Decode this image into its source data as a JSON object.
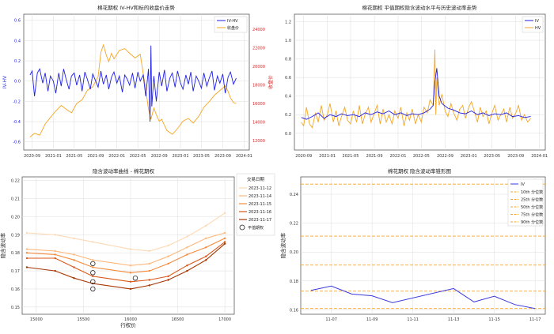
{
  "chart_data": [
    {
      "type": "line",
      "title": "棉花期权 IV-HV和标的收盘价走势",
      "xlabel": "",
      "ylabel_left": "IV-HV",
      "ylabel_right": "收盘价",
      "x_ticks": [
        "2020-09",
        "2021-01",
        "2021-05",
        "2021-09",
        "2022-01",
        "2022-05",
        "2022-09",
        "2023-01",
        "2023-05",
        "2023-09",
        "2024-01"
      ],
      "y_left_ticks": [
        "-0.6",
        "-0.4",
        "-0.2",
        "0.0",
        "0.2",
        "0.4",
        "0.6"
      ],
      "y_right_ticks": [
        "12000",
        "14000",
        "16000",
        "18000",
        "20000",
        "22000",
        "24000"
      ],
      "ylim_left": [
        -0.68,
        0.66
      ],
      "ylim_right": [
        11000,
        25600
      ],
      "xlim": [
        "2020-07-15",
        "2024-01-31"
      ],
      "grid": true,
      "legend_position": "top-right",
      "series": [
        {
          "name": "IV-HV",
          "color": "#1f1fe6",
          "axis": "left",
          "x": [
            "2020-08-20",
            "2020-09-01",
            "2020-09-15",
            "2020-10-01",
            "2020-10-15",
            "2020-11-01",
            "2020-11-15",
            "2020-12-01",
            "2020-12-15",
            "2021-01-01",
            "2021-01-15",
            "2021-02-01",
            "2021-02-15",
            "2021-03-01",
            "2021-03-15",
            "2021-04-01",
            "2021-04-15",
            "2021-05-01",
            "2021-05-15",
            "2021-06-01",
            "2021-06-15",
            "2021-07-01",
            "2021-07-15",
            "2021-08-01",
            "2021-08-15",
            "2021-09-01",
            "2021-09-15",
            "2021-10-01",
            "2021-10-15",
            "2021-11-01",
            "2021-11-15",
            "2021-12-01",
            "2021-12-15",
            "2022-01-01",
            "2022-01-15",
            "2022-02-01",
            "2022-02-15",
            "2022-03-01",
            "2022-03-15",
            "2022-04-01",
            "2022-04-15",
            "2022-05-01",
            "2022-05-15",
            "2022-06-01",
            "2022-06-15",
            "2022-07-01",
            "2022-07-10",
            "2022-07-15",
            "2022-07-20",
            "2022-08-01",
            "2022-08-15",
            "2022-09-01",
            "2022-09-15",
            "2022-10-01",
            "2022-10-15",
            "2022-11-01",
            "2022-11-15",
            "2022-12-01",
            "2022-12-15",
            "2023-01-01",
            "2023-01-15",
            "2023-02-01",
            "2023-02-15",
            "2023-03-01",
            "2023-03-15",
            "2023-04-01",
            "2023-04-15",
            "2023-05-01",
            "2023-05-15",
            "2023-06-01",
            "2023-06-15",
            "2023-07-01",
            "2023-07-15",
            "2023-08-01",
            "2023-08-15",
            "2023-09-01",
            "2023-09-15",
            "2023-10-01",
            "2023-10-15",
            "2023-11-01",
            "2023-11-17"
          ],
          "values": [
            0.06,
            0.1,
            -0.15,
            0.08,
            0.12,
            -0.02,
            0.08,
            -0.1,
            0.05,
            0.0,
            -0.12,
            0.08,
            -0.05,
            0.12,
            0.02,
            -0.08,
            0.05,
            0.08,
            -0.04,
            0.06,
            -0.1,
            0.09,
            0.02,
            -0.08,
            0.07,
            0.0,
            -0.06,
            0.1,
            -0.03,
            0.06,
            -0.08,
            0.04,
            0.09,
            -0.02,
            0.05,
            -0.11,
            0.06,
            0.02,
            -0.04,
            0.08,
            -0.07,
            0.09,
            0.0,
            0.06,
            -0.15,
            0.12,
            -0.4,
            0.35,
            -0.25,
            0.05,
            -0.2,
            0.09,
            -0.05,
            0.11,
            -0.1,
            0.03,
            0.08,
            -0.06,
            0.1,
            -0.02,
            -0.08,
            0.06,
            -0.03,
            0.09,
            -0.1,
            0.05,
            0.0,
            -0.07,
            0.08,
            -0.05,
            0.03,
            0.1,
            -0.09,
            0.05,
            -0.02,
            0.07,
            -0.12,
            0.04,
            0.09,
            -0.03,
            0.03
          ]
        },
        {
          "name": "收盘价",
          "color": "#f5a623",
          "axis": "right",
          "x": [
            "2020-08-20",
            "2020-09-15",
            "2020-10-15",
            "2020-11-15",
            "2020-12-15",
            "2021-01-15",
            "2021-02-15",
            "2021-03-15",
            "2021-04-15",
            "2021-05-15",
            "2021-06-15",
            "2021-07-15",
            "2021-08-15",
            "2021-09-15",
            "2021-10-01",
            "2021-10-15",
            "2021-11-01",
            "2021-11-15",
            "2021-12-01",
            "2021-12-15",
            "2022-01-15",
            "2022-02-15",
            "2022-03-15",
            "2022-04-15",
            "2022-05-15",
            "2022-06-01",
            "2022-06-15",
            "2022-07-01",
            "2022-07-15",
            "2022-08-01",
            "2022-08-15",
            "2022-09-01",
            "2022-09-15",
            "2022-10-15",
            "2022-11-15",
            "2022-12-15",
            "2023-01-15",
            "2023-02-15",
            "2023-03-15",
            "2023-04-15",
            "2023-05-15",
            "2023-06-15",
            "2023-07-15",
            "2023-08-15",
            "2023-09-15",
            "2023-10-01",
            "2023-10-15",
            "2023-11-01",
            "2023-11-17"
          ],
          "values": [
            12400,
            12800,
            12600,
            13800,
            14500,
            15200,
            15800,
            15400,
            15000,
            16000,
            16400,
            17400,
            17800,
            18900,
            21500,
            22300,
            21200,
            20500,
            21400,
            20800,
            21700,
            21900,
            21400,
            20900,
            21300,
            19200,
            17600,
            15400,
            14300,
            15500,
            14800,
            14100,
            14300,
            13100,
            12700,
            13300,
            14100,
            14400,
            13900,
            14600,
            15600,
            16200,
            16900,
            17400,
            17900,
            17300,
            16600,
            16100,
            16000
          ]
        }
      ]
    },
    {
      "type": "line",
      "title": "棉花期权 平值期权隐含波动水平与历史波动率走势",
      "xlabel": "",
      "ylabel": "",
      "x_ticks": [
        "2020-09",
        "2021-01",
        "2021-05",
        "2021-09",
        "2022-01",
        "2022-05",
        "2022-09",
        "2023-01",
        "2023-05",
        "2023-09",
        "2024-01"
      ],
      "y_ticks": [
        "0.0",
        "0.2",
        "0.4",
        "0.6",
        "0.8",
        "1.0",
        "1.2"
      ],
      "ylim": [
        -0.18,
        1.28
      ],
      "xlim": [
        "2020-07-15",
        "2024-01-31"
      ],
      "grid": true,
      "legend_position": "top-right",
      "series": [
        {
          "name": "IV",
          "color": "#1f1fe6",
          "x": [
            "2020-08-20",
            "2020-09-15",
            "2020-10-15",
            "2020-11-15",
            "2020-12-15",
            "2021-01-15",
            "2021-02-15",
            "2021-03-15",
            "2021-04-15",
            "2021-05-15",
            "2021-06-15",
            "2021-07-15",
            "2021-08-15",
            "2021-09-15",
            "2021-10-15",
            "2021-11-15",
            "2021-12-15",
            "2022-01-15",
            "2022-02-15",
            "2022-03-15",
            "2022-04-15",
            "2022-05-15",
            "2022-06-15",
            "2022-07-01",
            "2022-07-10",
            "2022-07-20",
            "2022-08-01",
            "2022-08-15",
            "2022-09-15",
            "2022-10-15",
            "2022-11-15",
            "2022-12-15",
            "2023-01-15",
            "2023-02-15",
            "2023-03-15",
            "2023-04-15",
            "2023-05-15",
            "2023-06-15",
            "2023-07-15",
            "2023-08-15",
            "2023-09-15",
            "2023-10-15",
            "2023-11-17"
          ],
          "values": [
            0.17,
            0.15,
            0.18,
            0.22,
            0.16,
            0.2,
            0.18,
            0.21,
            0.19,
            0.2,
            0.18,
            0.22,
            0.2,
            0.23,
            0.21,
            0.24,
            0.2,
            0.22,
            0.19,
            0.21,
            0.2,
            0.22,
            0.26,
            0.3,
            0.55,
            0.7,
            0.4,
            0.32,
            0.27,
            0.25,
            0.22,
            0.21,
            0.24,
            0.2,
            0.22,
            0.19,
            0.21,
            0.2,
            0.22,
            0.18,
            0.19,
            0.17,
            0.18
          ]
        },
        {
          "name": "HV",
          "color": "#f5a623",
          "x": [
            "2020-08-20",
            "2020-09-01",
            "2020-09-15",
            "2020-10-01",
            "2020-10-15",
            "2020-11-01",
            "2020-11-15",
            "2020-12-01",
            "2020-12-15",
            "2021-01-01",
            "2021-01-15",
            "2021-02-01",
            "2021-02-15",
            "2021-03-01",
            "2021-03-15",
            "2021-04-01",
            "2021-04-15",
            "2021-05-01",
            "2021-05-15",
            "2021-06-01",
            "2021-06-15",
            "2021-07-01",
            "2021-07-15",
            "2021-08-01",
            "2021-08-15",
            "2021-09-01",
            "2021-09-15",
            "2021-10-01",
            "2021-10-15",
            "2021-11-01",
            "2021-11-15",
            "2021-12-01",
            "2021-12-15",
            "2022-01-01",
            "2022-01-15",
            "2022-02-01",
            "2022-02-15",
            "2022-03-01",
            "2022-03-15",
            "2022-04-01",
            "2022-04-15",
            "2022-05-01",
            "2022-05-15",
            "2022-06-01",
            "2022-06-15",
            "2022-07-01",
            "2022-07-10",
            "2022-07-15",
            "2022-07-20",
            "2022-08-01",
            "2022-08-15",
            "2022-09-01",
            "2022-09-15",
            "2022-10-01",
            "2022-10-15",
            "2022-11-01",
            "2022-11-15",
            "2022-12-01",
            "2022-12-15",
            "2023-01-01",
            "2023-01-15",
            "2023-02-01",
            "2023-02-15",
            "2023-03-01",
            "2023-03-15",
            "2023-04-01",
            "2023-04-15",
            "2023-05-01",
            "2023-05-15",
            "2023-06-01",
            "2023-06-15",
            "2023-07-01",
            "2023-07-15",
            "2023-08-01",
            "2023-08-15",
            "2023-09-01",
            "2023-09-15",
            "2023-10-01",
            "2023-10-15",
            "2023-11-01",
            "2023-11-17"
          ],
          "values": [
            0.12,
            0.08,
            0.28,
            0.1,
            0.06,
            0.22,
            0.12,
            0.3,
            0.14,
            0.2,
            0.32,
            0.12,
            0.24,
            0.08,
            0.18,
            0.28,
            0.14,
            0.1,
            0.24,
            0.12,
            0.3,
            0.1,
            0.2,
            0.28,
            0.12,
            0.22,
            0.3,
            0.1,
            0.26,
            0.12,
            0.2,
            0.1,
            0.24,
            0.16,
            0.28,
            0.08,
            0.22,
            0.14,
            0.26,
            0.1,
            0.2,
            0.12,
            0.28,
            0.22,
            0.36,
            0.3,
            0.9,
            0.2,
            0.6,
            0.3,
            0.42,
            0.24,
            0.18,
            0.32,
            0.22,
            0.14,
            0.26,
            0.3,
            0.16,
            0.28,
            0.34,
            0.22,
            0.12,
            0.28,
            0.18,
            0.24,
            0.1,
            0.22,
            0.3,
            0.14,
            0.2,
            0.26,
            0.12,
            0.28,
            0.16,
            0.22,
            0.3,
            0.14,
            0.2,
            0.12,
            0.16
          ]
        }
      ]
    },
    {
      "type": "line",
      "title": "隐含波动率曲线 - 棉花期权",
      "xlabel": "行权价",
      "ylabel": "隐含波动率",
      "x_ticks": [
        "15000",
        "15500",
        "16000",
        "16500",
        "17000"
      ],
      "y_ticks": [
        "0.15",
        "0.16",
        "0.17",
        "0.18",
        "0.19",
        "0.20",
        "0.21",
        "0.22"
      ],
      "xlim": [
        14850,
        17100
      ],
      "ylim": [
        0.146,
        0.222
      ],
      "grid": true,
      "legend_title": "交易日期",
      "legend_position": "outside-right",
      "marker_legend": "平值期权",
      "x": [
        14900,
        15200,
        15400,
        15600,
        16000,
        16200,
        16400,
        16600,
        16800,
        17000
      ],
      "series": [
        {
          "name": "2023-11-12",
          "color": "#fdd9b5",
          "values": [
            0.191,
            0.19,
            0.188,
            0.186,
            0.182,
            0.181,
            0.184,
            0.189,
            0.195,
            0.202
          ]
        },
        {
          "name": "2023-11-14",
          "color": "#fdb97d",
          "values": [
            0.182,
            0.181,
            0.179,
            0.176,
            0.173,
            0.174,
            0.178,
            0.183,
            0.188,
            0.191
          ]
        },
        {
          "name": "2023-11-15",
          "color": "#f58b3c",
          "values": [
            0.18,
            0.179,
            0.176,
            0.172,
            0.169,
            0.17,
            0.174,
            0.179,
            0.183,
            0.188
          ]
        },
        {
          "name": "2023-11-16",
          "color": "#d9581a",
          "values": [
            0.177,
            0.177,
            0.172,
            0.167,
            0.164,
            0.165,
            0.167,
            0.173,
            0.178,
            0.186
          ]
        },
        {
          "name": "2023-11-17",
          "color": "#a63603",
          "values": [
            0.172,
            0.17,
            0.166,
            0.163,
            0.16,
            0.162,
            0.165,
            0.17,
            0.176,
            0.185
          ]
        }
      ],
      "atm_points": [
        {
          "x": 15600,
          "y": 0.174
        },
        {
          "x": 15600,
          "y": 0.169
        },
        {
          "x": 15600,
          "y": 0.164
        },
        {
          "x": 15600,
          "y": 0.16
        },
        {
          "x": 16050,
          "y": 0.166
        }
      ]
    },
    {
      "type": "line",
      "title": "棉花期权 隐含波动率锥形图",
      "xlabel": "",
      "ylabel": "隐含波动率",
      "x_ticks": [
        "11-07",
        "11-09",
        "11-11",
        "11-13",
        "11-15",
        "11-17"
      ],
      "y_ticks": [
        "0.16",
        "0.18",
        "0.20",
        "0.22",
        "0.24"
      ],
      "xlim": [
        "2023-11-05T12:00",
        "2023-11-17T12:00"
      ],
      "ylim": [
        0.157,
        0.252
      ],
      "grid": true,
      "legend_position": "top-right",
      "series": [
        {
          "name": "IV",
          "color": "#3a3ae0",
          "x": [
            "2023-11-06",
            "2023-11-07",
            "2023-11-08",
            "2023-11-09",
            "2023-11-10",
            "2023-11-13",
            "2023-11-14",
            "2023-11-15",
            "2023-11-16",
            "2023-11-17"
          ],
          "values": [
            0.1735,
            0.1765,
            0.171,
            0.1698,
            0.165,
            0.1748,
            0.1655,
            0.1695,
            0.1637,
            0.161
          ]
        }
      ],
      "percentiles": [
        {
          "name": "10th 分位数",
          "value": 0.161,
          "color": "#f5a623"
        },
        {
          "name": "25th 分位数",
          "value": 0.173,
          "color": "#f5a623"
        },
        {
          "name": "50th 分位数",
          "value": 0.191,
          "color": "#f5a623"
        },
        {
          "name": "75th 分位数",
          "value": 0.211,
          "color": "#f5a623"
        },
        {
          "name": "90th 分位数",
          "value": 0.247,
          "color": "#f5a623"
        }
      ]
    }
  ]
}
